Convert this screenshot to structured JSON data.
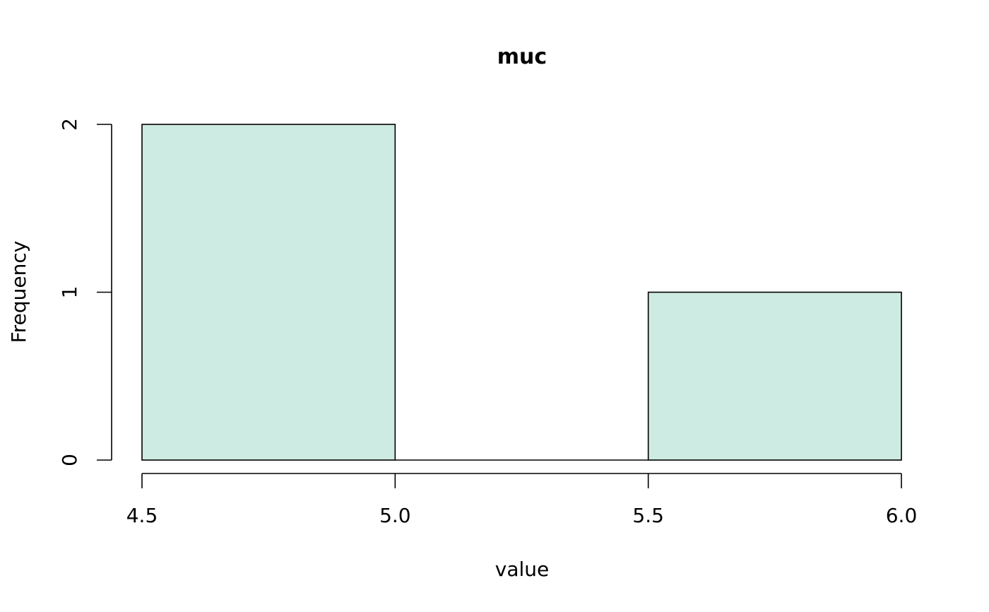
{
  "chart_data": {
    "type": "bar",
    "title": "muc",
    "xlabel": "value",
    "ylabel": "Frequency",
    "bins": [
      {
        "start": 4.5,
        "end": 5.0,
        "count": 2
      },
      {
        "start": 5.0,
        "end": 5.5,
        "count": 0
      },
      {
        "start": 5.5,
        "end": 6.0,
        "count": 1
      }
    ],
    "xlim": [
      4.5,
      6.0
    ],
    "ylim": [
      0,
      2
    ],
    "x_ticks": [
      "4.5",
      "5.0",
      "5.5",
      "6.0"
    ],
    "y_ticks": [
      "0",
      "1",
      "2"
    ],
    "bar_color": "#cdebe2",
    "grid": false
  }
}
